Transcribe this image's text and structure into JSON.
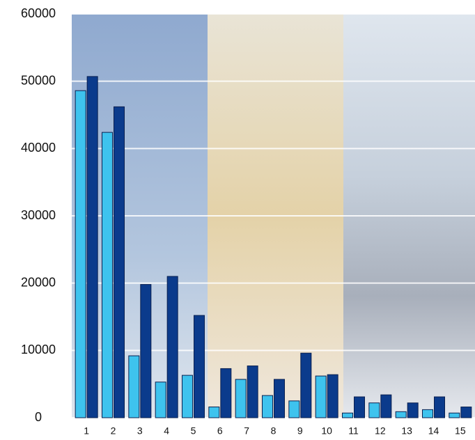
{
  "chart_data": {
    "type": "bar",
    "categories": [
      "1",
      "2",
      "3",
      "4",
      "5",
      "6",
      "7",
      "8",
      "9",
      "10",
      "11",
      "12",
      "13",
      "14",
      "15"
    ],
    "series": [
      {
        "color": "#3ec3ee",
        "values": [
          48600,
          42400,
          9200,
          5300,
          6300,
          1600,
          5700,
          3300,
          2500,
          6200,
          700,
          2200,
          900,
          1200,
          700
        ]
      },
      {
        "color": "#0b3b8c",
        "values": [
          50700,
          46200,
          19800,
          21000,
          15200,
          7300,
          7700,
          5700,
          9600,
          6400,
          3100,
          3400,
          2200,
          3100,
          1600
        ]
      }
    ],
    "ylim": [
      0,
      60000
    ],
    "yticks": [
      0,
      10000,
      20000,
      30000,
      40000,
      50000,
      60000
    ],
    "grid": true
  }
}
